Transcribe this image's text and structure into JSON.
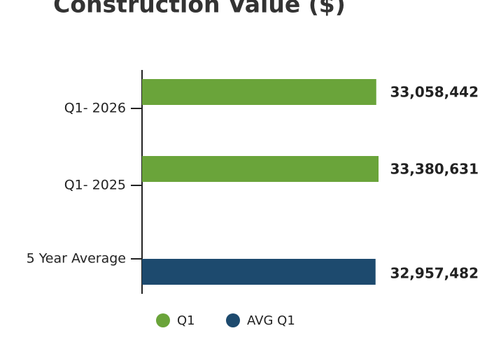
{
  "chart_data": {
    "type": "bar",
    "orientation": "horizontal",
    "title": "Construction Value ($)",
    "categories": [
      "Q1- 2026",
      "Q1- 2025",
      "5 Year Average"
    ],
    "series": [
      {
        "name": "Q1",
        "color": "#6aa43a",
        "values": [
          33058442,
          33380631,
          null
        ],
        "value_labels": [
          "33,058,442",
          "33,380,631",
          null
        ]
      },
      {
        "name": "AVG Q1",
        "color": "#1d4a6e",
        "values": [
          null,
          null,
          32957482
        ],
        "value_labels": [
          null,
          null,
          "32,957,482"
        ]
      }
    ],
    "legend": "bottom"
  }
}
